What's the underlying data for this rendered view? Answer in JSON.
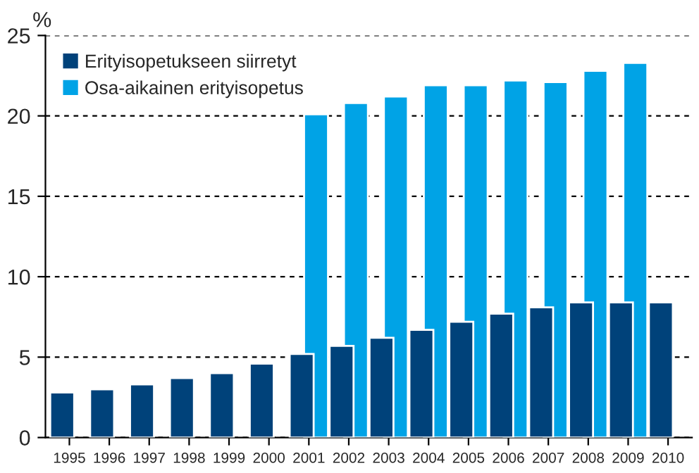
{
  "chart_data": {
    "type": "bar",
    "ylabel": "%",
    "categories": [
      "1995",
      "1996",
      "1997",
      "1998",
      "1999",
      "2000",
      "2001",
      "2002",
      "2003",
      "2004",
      "2005",
      "2006",
      "2007",
      "2008",
      "2009",
      "2010"
    ],
    "series": [
      {
        "name": "Erityisopetukseen siirretyt",
        "color": "#00427a",
        "values": [
          2.8,
          3.0,
          3.3,
          3.7,
          4.0,
          4.6,
          5.2,
          5.7,
          6.2,
          6.7,
          7.2,
          7.7,
          8.1,
          8.4,
          8.4,
          8.4
        ]
      },
      {
        "name": "Osa-aikainen erityisopetus",
        "color": "#00a3e6",
        "values": [
          null,
          null,
          null,
          null,
          null,
          null,
          20.1,
          20.8,
          21.2,
          21.9,
          21.9,
          22.2,
          22.1,
          22.8,
          23.3,
          null
        ]
      }
    ],
    "ylim": [
      0,
      25
    ],
    "yticks": [
      0,
      5,
      10,
      15,
      20,
      25
    ],
    "grid": "y",
    "legend": "top left"
  }
}
